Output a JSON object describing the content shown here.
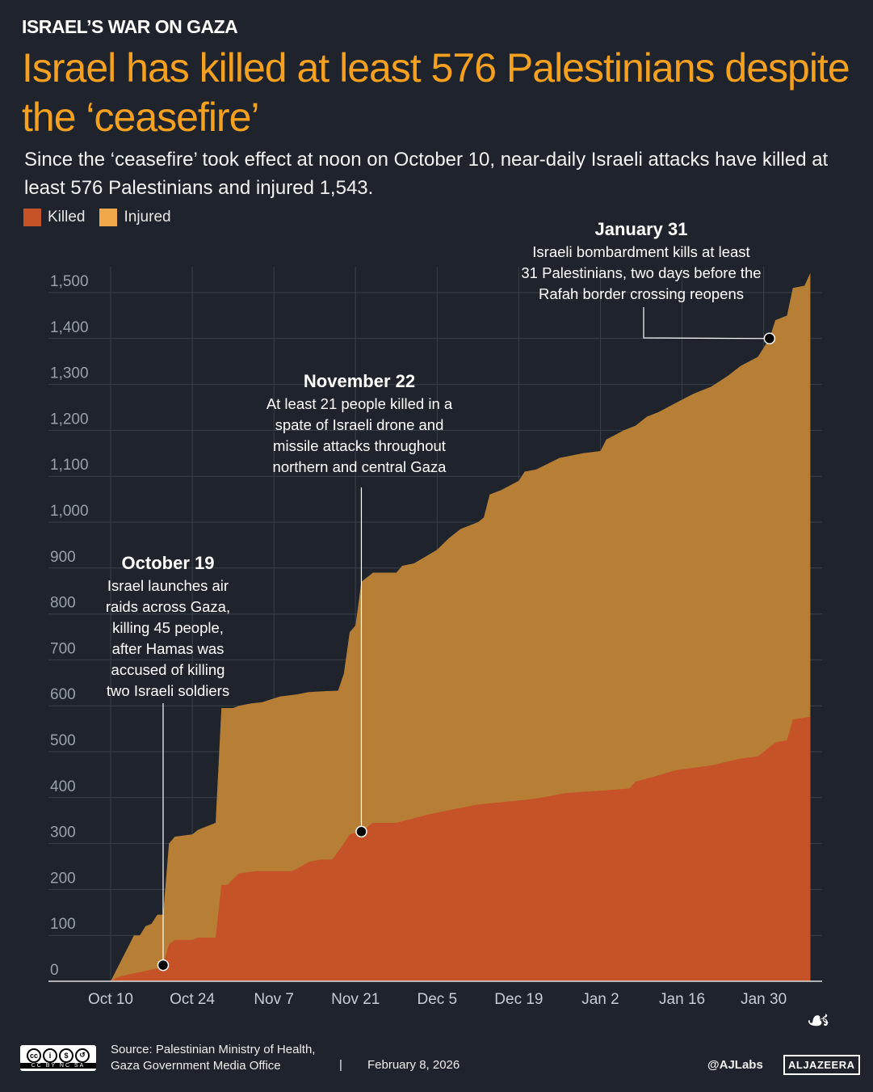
{
  "header": {
    "kicker": "ISRAEL’S WAR ON GAZA",
    "title": "Israel has killed at least 576 Palestinians despite the ‘ceasefire’",
    "subtitle": "Since the ‘ceasefire’ took effect at noon on October 10, near-daily Israeli attacks have killed at least 576 Palestinians and injured 1,543."
  },
  "chart_data": {
    "type": "area",
    "title": "Israel has killed at least 576 Palestinians despite the ‘ceasefire’",
    "xlabel": "",
    "ylabel": "",
    "ylim": [
      0,
      1550
    ],
    "xlim": [
      "2025-10-10",
      "2026-02-07"
    ],
    "grid": true,
    "legend_position": "top-left",
    "y_ticks": [
      "0",
      "100",
      "200",
      "300",
      "400",
      "500",
      "600",
      "700",
      "800",
      "900",
      "1,000",
      "1,100",
      "1,200",
      "1,300",
      "1,400",
      "1,500"
    ],
    "x_ticks": [
      {
        "date": "2025-10-10",
        "label": "Oct 10"
      },
      {
        "date": "2025-10-24",
        "label": "Oct 24"
      },
      {
        "date": "2025-11-07",
        "label": "Nov 7"
      },
      {
        "date": "2025-11-21",
        "label": "Nov 21"
      },
      {
        "date": "2025-12-05",
        "label": "Dec 5"
      },
      {
        "date": "2025-12-19",
        "label": "Dec 19"
      },
      {
        "date": "2026-01-02",
        "label": "Jan 2"
      },
      {
        "date": "2026-01-16",
        "label": "Jan 16"
      },
      {
        "date": "2026-01-30",
        "label": "Jan 30"
      }
    ],
    "series": [
      {
        "name": "Injured",
        "color": "#b77f36",
        "legend_color": "#f0a84a",
        "points": [
          [
            "2025-10-10",
            0
          ],
          [
            "2025-10-13",
            75
          ],
          [
            "2025-10-14",
            100
          ],
          [
            "2025-10-15",
            100
          ],
          [
            "2025-10-16",
            120
          ],
          [
            "2025-10-17",
            125
          ],
          [
            "2025-10-18",
            145
          ],
          [
            "2025-10-19",
            145
          ],
          [
            "2025-10-20",
            300
          ],
          [
            "2025-10-21",
            315
          ],
          [
            "2025-10-24",
            320
          ],
          [
            "2025-10-25",
            330
          ],
          [
            "2025-10-27",
            340
          ],
          [
            "2025-10-28",
            345
          ],
          [
            "2025-10-29",
            595
          ],
          [
            "2025-10-31",
            595
          ],
          [
            "2025-11-01",
            600
          ],
          [
            "2025-11-03",
            605
          ],
          [
            "2025-11-05",
            608
          ],
          [
            "2025-11-08",
            620
          ],
          [
            "2025-11-11",
            625
          ],
          [
            "2025-11-13",
            630
          ],
          [
            "2025-11-16",
            632
          ],
          [
            "2025-11-18",
            633
          ],
          [
            "2025-11-19",
            670
          ],
          [
            "2025-11-20",
            760
          ],
          [
            "2025-11-21",
            775
          ],
          [
            "2025-11-22",
            870
          ],
          [
            "2025-11-24",
            890
          ],
          [
            "2025-11-28",
            890
          ],
          [
            "2025-11-29",
            905
          ],
          [
            "2025-12-01",
            910
          ],
          [
            "2025-12-03",
            925
          ],
          [
            "2025-12-05",
            940
          ],
          [
            "2025-12-07",
            965
          ],
          [
            "2025-12-09",
            985
          ],
          [
            "2025-12-12",
            1000
          ],
          [
            "2025-12-13",
            1010
          ],
          [
            "2025-12-14",
            1060
          ],
          [
            "2025-12-16",
            1070
          ],
          [
            "2025-12-19",
            1090
          ],
          [
            "2025-12-20",
            1110
          ],
          [
            "2025-12-22",
            1115
          ],
          [
            "2025-12-26",
            1140
          ],
          [
            "2025-12-30",
            1150
          ],
          [
            "2026-01-02",
            1155
          ],
          [
            "2026-01-03",
            1180
          ],
          [
            "2026-01-06",
            1200
          ],
          [
            "2026-01-08",
            1210
          ],
          [
            "2026-01-10",
            1230
          ],
          [
            "2026-01-12",
            1240
          ],
          [
            "2026-01-15",
            1260
          ],
          [
            "2026-01-18",
            1280
          ],
          [
            "2026-01-21",
            1295
          ],
          [
            "2026-01-24",
            1320
          ],
          [
            "2026-01-26",
            1340
          ],
          [
            "2026-01-29",
            1360
          ],
          [
            "2026-01-31",
            1400
          ],
          [
            "2026-02-01",
            1440
          ],
          [
            "2026-02-03",
            1450
          ],
          [
            "2026-02-04",
            1510
          ],
          [
            "2026-02-06",
            1515
          ],
          [
            "2026-02-07",
            1543
          ]
        ]
      },
      {
        "name": "Killed",
        "color": "#c65227",
        "legend_color": "#c65227",
        "points": [
          [
            "2025-10-10",
            0
          ],
          [
            "2025-10-11",
            8
          ],
          [
            "2025-10-13",
            15
          ],
          [
            "2025-10-15",
            20
          ],
          [
            "2025-10-17",
            25
          ],
          [
            "2025-10-18",
            28
          ],
          [
            "2025-10-19",
            35
          ],
          [
            "2025-10-20",
            80
          ],
          [
            "2025-10-21",
            90
          ],
          [
            "2025-10-24",
            90
          ],
          [
            "2025-10-25",
            95
          ],
          [
            "2025-10-28",
            95
          ],
          [
            "2025-10-29",
            210
          ],
          [
            "2025-10-30",
            210
          ],
          [
            "2025-11-01",
            235
          ],
          [
            "2025-11-04",
            240
          ],
          [
            "2025-11-10",
            240
          ],
          [
            "2025-11-11",
            245
          ],
          [
            "2025-11-13",
            260
          ],
          [
            "2025-11-15",
            265
          ],
          [
            "2025-11-17",
            265
          ],
          [
            "2025-11-19",
            300
          ],
          [
            "2025-11-20",
            320
          ],
          [
            "2025-11-22",
            326
          ],
          [
            "2025-11-24",
            345
          ],
          [
            "2025-11-28",
            345
          ],
          [
            "2025-12-01",
            355
          ],
          [
            "2025-12-04",
            365
          ],
          [
            "2025-12-08",
            375
          ],
          [
            "2025-12-12",
            385
          ],
          [
            "2025-12-16",
            390
          ],
          [
            "2025-12-20",
            395
          ],
          [
            "2025-12-23",
            400
          ],
          [
            "2025-12-27",
            410
          ],
          [
            "2026-01-02",
            415
          ],
          [
            "2026-01-07",
            420
          ],
          [
            "2026-01-08",
            435
          ],
          [
            "2026-01-11",
            445
          ],
          [
            "2026-01-15",
            460
          ],
          [
            "2026-01-21",
            470
          ],
          [
            "2026-01-26",
            485
          ],
          [
            "2026-01-29",
            490
          ],
          [
            "2026-02-01",
            520
          ],
          [
            "2026-02-03",
            525
          ],
          [
            "2026-02-04",
            570
          ],
          [
            "2026-02-07",
            576
          ]
        ]
      }
    ],
    "annotations": [
      {
        "date": "2025-10-19",
        "value": 35,
        "title": "October 19",
        "lines": [
          "Israel launches air",
          "raids across Gaza,",
          "killing 45 people,",
          "after Hamas was",
          "accused of killing",
          "two Israeli soldiers"
        ]
      },
      {
        "date": "2025-11-22",
        "value": 326,
        "title": "November 22",
        "lines": [
          "At least 21 people killed in a",
          "spate of Israeli drone and",
          "missile attacks throughout",
          "northern and central Gaza"
        ]
      },
      {
        "date": "2026-01-31",
        "value": 1400,
        "title": "January 31",
        "lines": [
          "Israeli bombardment kills at least",
          "31 Palestinians, two days before the",
          "Rafah border crossing reopens"
        ]
      }
    ]
  },
  "legend": {
    "killed": "Killed",
    "injured": "Injured"
  },
  "footer": {
    "license": "CC BY NC SA",
    "license_labels": [
      "BY",
      "NC",
      "SA"
    ],
    "source_line1": "Source:  Palestinian Ministry of Health,",
    "source_line2": "Gaza Government Media Office",
    "separator": "|",
    "date": "February 8, 2026",
    "handle": "@AJLabs",
    "logo": "ALJAZEERA"
  }
}
